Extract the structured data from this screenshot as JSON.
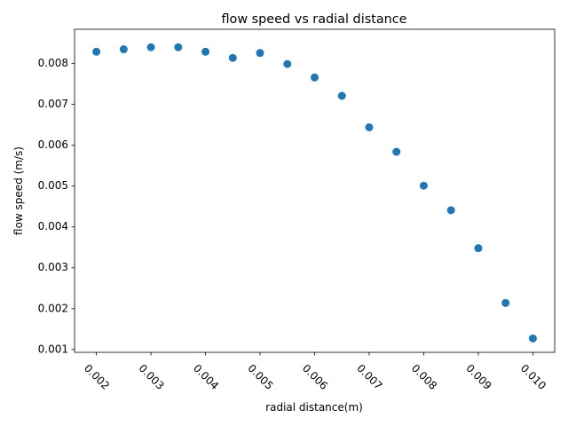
{
  "chart_data": {
    "type": "scatter",
    "title": "flow speed vs radial distance",
    "xlabel": "radial distance(m)",
    "ylabel": "flow speed (m/s)",
    "xlim": [
      0.0016,
      0.0104
    ],
    "ylim": [
      0.00093,
      0.00884
    ],
    "x_ticks": [
      0.002,
      0.003,
      0.004,
      0.005,
      0.006,
      0.007,
      0.008,
      0.009,
      0.01
    ],
    "x_tick_labels": [
      "0.002",
      "0.003",
      "0.004",
      "0.005",
      "0.006",
      "0.007",
      "0.008",
      "0.009",
      "0.010"
    ],
    "y_ticks": [
      0.001,
      0.002,
      0.003,
      0.004,
      0.005,
      0.006,
      0.007,
      0.008
    ],
    "y_tick_labels": [
      "0.001",
      "0.002",
      "0.003",
      "0.004",
      "0.005",
      "0.006",
      "0.007",
      "0.008"
    ],
    "x_tick_rotation_deg": -45,
    "grid": false,
    "marker_color": "#1f77b4",
    "series": [
      {
        "x": [
          0.002,
          0.0025,
          0.003,
          0.0035,
          0.004,
          0.0045,
          0.005,
          0.0055,
          0.006,
          0.0065,
          0.007,
          0.0075,
          0.008,
          0.0085,
          0.009,
          0.0095,
          0.01
        ],
        "y": [
          0.00829,
          0.00835,
          0.0084,
          0.0084,
          0.00829,
          0.00814,
          0.00826,
          0.00799,
          0.00766,
          0.00721,
          0.00644,
          0.00584,
          0.00501,
          0.00441,
          0.00348,
          0.00214,
          0.00127
        ]
      }
    ]
  }
}
